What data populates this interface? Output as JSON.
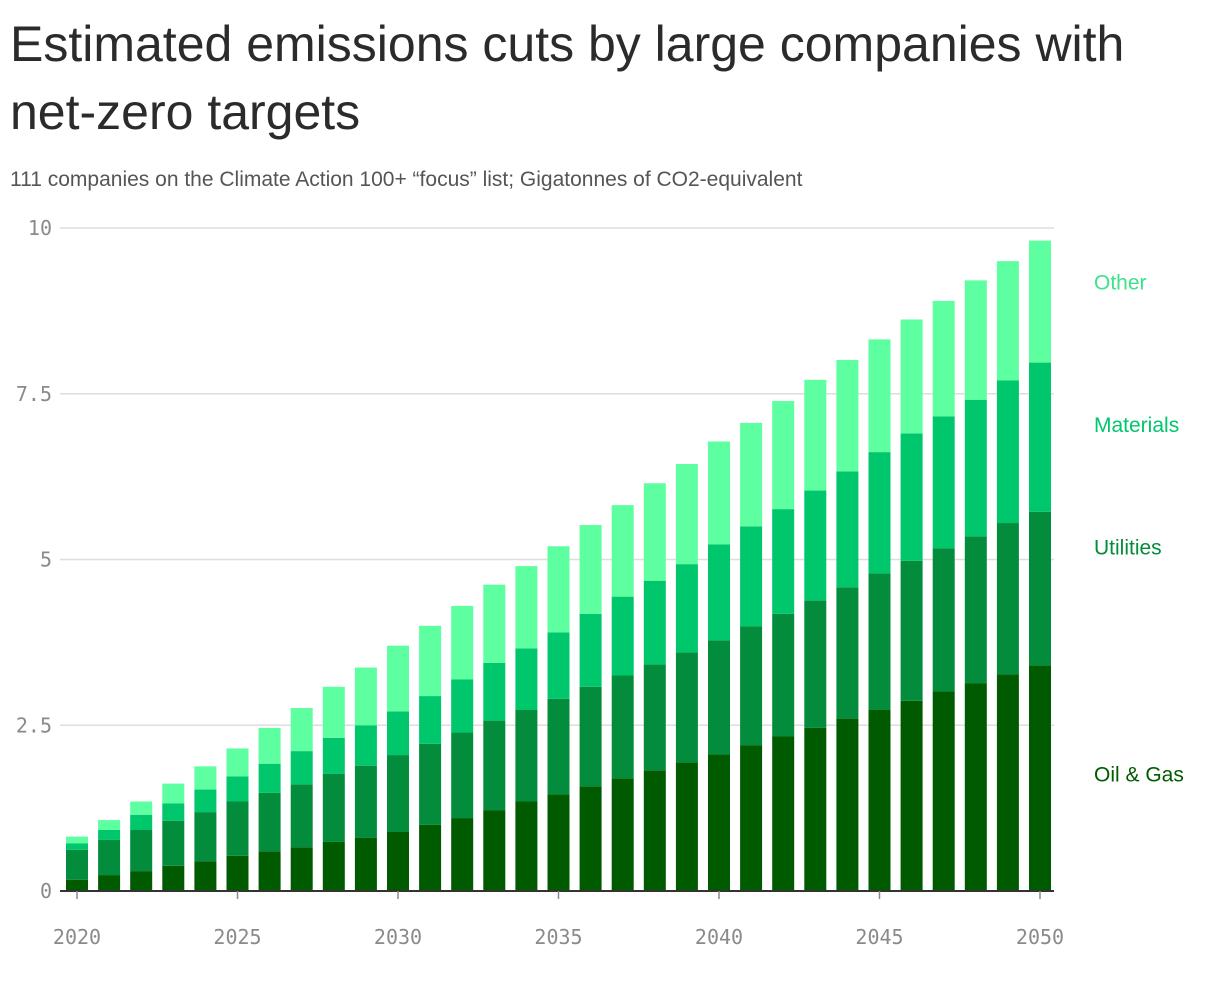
{
  "title": "Estimated emissions cuts by large companies with net-zero targets",
  "subtitle": "111 companies on the Climate Action 100+ “focus” list; Gigatonnes of CO2-equivalent",
  "colors": {
    "oil_gas": "#005a00",
    "utilities": "#038c3c",
    "materials": "#00c66c",
    "other": "#5effa0",
    "grid": "#dedede",
    "axis": "#333333",
    "tick_text": "#8a8a8a"
  },
  "chart_data": {
    "type": "bar",
    "stacked": true,
    "title": "Estimated emissions cuts by large companies with net-zero targets",
    "subtitle": "111 companies on the Climate Action 100+ “focus” list; Gigatonnes of CO2-equivalent",
    "xlabel": "",
    "ylabel": "",
    "x": [
      2020,
      2021,
      2022,
      2023,
      2024,
      2025,
      2026,
      2027,
      2028,
      2029,
      2030,
      2031,
      2032,
      2033,
      2034,
      2035,
      2036,
      2037,
      2038,
      2039,
      2040,
      2041,
      2042,
      2043,
      2044,
      2045,
      2046,
      2047,
      2048,
      2049,
      2050
    ],
    "x_ticks": [
      2020,
      2025,
      2030,
      2035,
      2040,
      2045,
      2050
    ],
    "x_tick_labels": [
      "2020",
      "2025",
      "2030",
      "2035",
      "2040",
      "2045",
      "2050"
    ],
    "ylim": [
      0,
      10
    ],
    "y_ticks": [
      0,
      2.5,
      5,
      7.5,
      10
    ],
    "y_tick_labels": [
      "0",
      "2.5",
      "5",
      "7.5",
      "10"
    ],
    "grid": true,
    "legend": "right, labels placed beside final bar",
    "series": [
      {
        "name": "Oil & Gas",
        "color": "#005a00",
        "values": [
          0.17,
          0.24,
          0.3,
          0.38,
          0.45,
          0.53,
          0.6,
          0.66,
          0.74,
          0.8,
          0.89,
          1.0,
          1.1,
          1.22,
          1.35,
          1.46,
          1.58,
          1.7,
          1.82,
          1.94,
          2.06,
          2.2,
          2.33,
          2.46,
          2.6,
          2.73,
          2.87,
          3.01,
          3.13,
          3.27,
          3.4
        ]
      },
      {
        "name": "Utilities",
        "color": "#038c3c",
        "values": [
          0.45,
          0.53,
          0.62,
          0.68,
          0.74,
          0.82,
          0.88,
          0.95,
          1.03,
          1.09,
          1.16,
          1.22,
          1.29,
          1.35,
          1.38,
          1.44,
          1.5,
          1.55,
          1.6,
          1.66,
          1.72,
          1.79,
          1.85,
          1.92,
          1.98,
          2.06,
          2.11,
          2.16,
          2.22,
          2.28,
          2.32
        ]
      },
      {
        "name": "Materials",
        "color": "#00c66c",
        "values": [
          0.1,
          0.15,
          0.23,
          0.26,
          0.34,
          0.38,
          0.44,
          0.5,
          0.54,
          0.61,
          0.66,
          0.72,
          0.8,
          0.87,
          0.93,
          1.0,
          1.1,
          1.19,
          1.26,
          1.33,
          1.45,
          1.51,
          1.58,
          1.66,
          1.75,
          1.83,
          1.92,
          1.99,
          2.06,
          2.15,
          2.25
        ]
      },
      {
        "name": "Other",
        "color": "#5effa0",
        "values": [
          0.1,
          0.15,
          0.2,
          0.3,
          0.35,
          0.42,
          0.54,
          0.65,
          0.77,
          0.87,
          0.99,
          1.06,
          1.11,
          1.18,
          1.24,
          1.3,
          1.34,
          1.38,
          1.47,
          1.51,
          1.55,
          1.56,
          1.63,
          1.67,
          1.68,
          1.7,
          1.72,
          1.74,
          1.8,
          1.8,
          1.84
        ]
      }
    ]
  }
}
